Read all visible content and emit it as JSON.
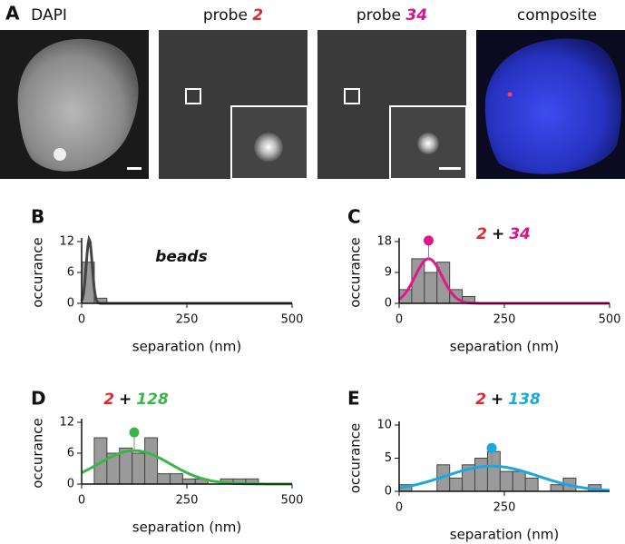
{
  "figure": {
    "panel": "A",
    "images": [
      {
        "title": "DAPI"
      },
      {
        "title": "probe",
        "tag": "2",
        "tag_color": "#e0282e"
      },
      {
        "title": "probe",
        "tag": "34",
        "tag_color": "#d6158f"
      },
      {
        "title": "composite"
      }
    ]
  },
  "chart_data": [
    {
      "type": "histogram",
      "panel": "B",
      "ylabel": "occurance",
      "xlabel": "separation (nm)",
      "annotation": [
        {
          "text": "beads",
          "color": "#111"
        }
      ],
      "bins": [
        0,
        30,
        60
      ],
      "counts": [
        8,
        1
      ],
      "xlim": [
        0,
        500
      ],
      "xticks": [
        0,
        250,
        500
      ],
      "ylim": [
        0,
        12
      ],
      "yticks": [
        0,
        6,
        12
      ],
      "fit": {
        "mu": 18,
        "sigma": 7,
        "amplitude": 12.5
      },
      "fit_color": "#444444",
      "peak_marker": false
    },
    {
      "type": "histogram",
      "panel": "C",
      "ylabel": "occurance",
      "xlabel": "separation (nm)",
      "annotation": [
        {
          "text": "2",
          "color": "#e0282e"
        },
        {
          "text": "+",
          "color": "#111"
        },
        {
          "text": "34",
          "color": "#d6158f"
        }
      ],
      "bins": [
        0,
        30,
        60,
        90,
        120,
        150,
        180
      ],
      "counts": [
        4,
        13,
        9,
        12,
        4,
        2
      ],
      "xlim": [
        0,
        500
      ],
      "xticks": [
        0,
        250,
        500
      ],
      "ylim": [
        0,
        18
      ],
      "yticks": [
        0,
        9,
        18
      ],
      "fit": {
        "mu": 70,
        "sigma": 32,
        "amplitude": 13
      },
      "fit_color": "#e0188c",
      "peak_marker": true
    },
    {
      "type": "histogram",
      "panel": "D",
      "ylabel": "occurance",
      "xlabel": "separation (nm)",
      "annotation": [
        {
          "text": "2",
          "color": "#e0282e"
        },
        {
          "text": "+",
          "color": "#111"
        },
        {
          "text": "128",
          "color": "#3ab54a"
        }
      ],
      "bins": [
        30,
        60,
        90,
        120,
        150,
        180,
        210,
        240,
        270,
        300,
        330,
        360,
        390,
        420
      ],
      "counts": [
        9,
        6,
        7,
        6,
        9,
        2,
        2,
        1,
        1,
        0,
        1,
        1,
        1
      ],
      "xlim": [
        0,
        500
      ],
      "xticks": [
        0,
        250,
        500
      ],
      "ylim": [
        0,
        12
      ],
      "yticks": [
        0,
        6,
        12
      ],
      "fit": {
        "mu": 125,
        "sigma": 85,
        "amplitude": 6.5
      },
      "fit_color": "#3ab54a",
      "peak_marker": true
    },
    {
      "type": "histogram",
      "panel": "E",
      "ylabel": "occurance",
      "xlabel": "separation (nm)",
      "annotation": [
        {
          "text": "2",
          "color": "#e0282e"
        },
        {
          "text": "+",
          "color": "#111"
        },
        {
          "text": "138",
          "color": "#1aa8e0"
        }
      ],
      "bins": [
        0,
        30,
        60,
        90,
        120,
        150,
        180,
        210,
        240,
        270,
        300,
        330,
        360,
        390,
        420,
        450,
        480
      ],
      "counts": [
        1,
        0,
        0,
        4,
        2,
        4,
        5,
        6,
        3,
        3,
        2,
        0,
        1,
        2,
        0,
        1
      ],
      "xlim": [
        0,
        500
      ],
      "xticks": [
        0,
        250
      ],
      "ylim": [
        0,
        10
      ],
      "yticks": [
        0,
        5,
        10
      ],
      "fit": {
        "mu": 220,
        "sigma": 110,
        "amplitude": 3.8
      },
      "fit_color": "#1aa8e0",
      "peak_marker": true
    }
  ]
}
